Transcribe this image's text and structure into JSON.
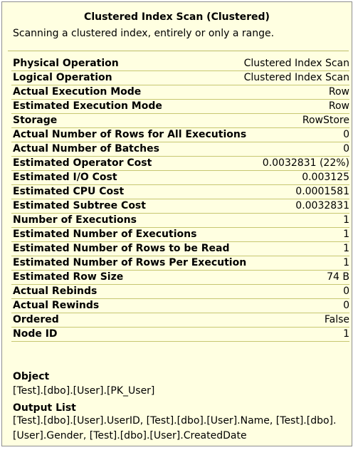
{
  "tooltip": {
    "title": "Clustered Index Scan (Clustered)",
    "subtitle": "Scanning a clustered index, entirely or only a range.",
    "properties": [
      {
        "label": "Physical Operation",
        "value": "Clustered Index Scan"
      },
      {
        "label": "Logical Operation",
        "value": "Clustered Index Scan"
      },
      {
        "label": "Actual Execution Mode",
        "value": "Row"
      },
      {
        "label": "Estimated Execution Mode",
        "value": "Row"
      },
      {
        "label": "Storage",
        "value": "RowStore"
      },
      {
        "label": "Actual Number of Rows for All Executions",
        "value": "0"
      },
      {
        "label": "Actual Number of Batches",
        "value": "0"
      },
      {
        "label": "Estimated Operator Cost",
        "value": "0.0032831 (22%)"
      },
      {
        "label": "Estimated I/O Cost",
        "value": "0.003125"
      },
      {
        "label": "Estimated CPU Cost",
        "value": "0.0001581"
      },
      {
        "label": "Estimated Subtree Cost",
        "value": "0.0032831"
      },
      {
        "label": "Number of Executions",
        "value": "1"
      },
      {
        "label": "Estimated Number of Executions",
        "value": "1"
      },
      {
        "label": "Estimated Number of Rows to be Read",
        "value": "1"
      },
      {
        "label": "Estimated Number of Rows Per Execution",
        "value": "1"
      },
      {
        "label": "Estimated Row Size",
        "value": "74 B"
      },
      {
        "label": "Actual Rebinds",
        "value": "0"
      },
      {
        "label": "Actual Rewinds",
        "value": "0"
      },
      {
        "label": "Ordered",
        "value": "False"
      },
      {
        "label": "Node ID",
        "value": "1"
      }
    ],
    "object_heading": "Object",
    "object_value": "[Test].[dbo].[User].[PK_User]",
    "output_heading": "Output List",
    "output_line1": "[Test].[dbo].[User].UserID, [Test].[dbo].[User].Name, [Test].[dbo].",
    "output_line2": "[User].Gender, [Test].[dbo].[User].CreatedDate"
  }
}
